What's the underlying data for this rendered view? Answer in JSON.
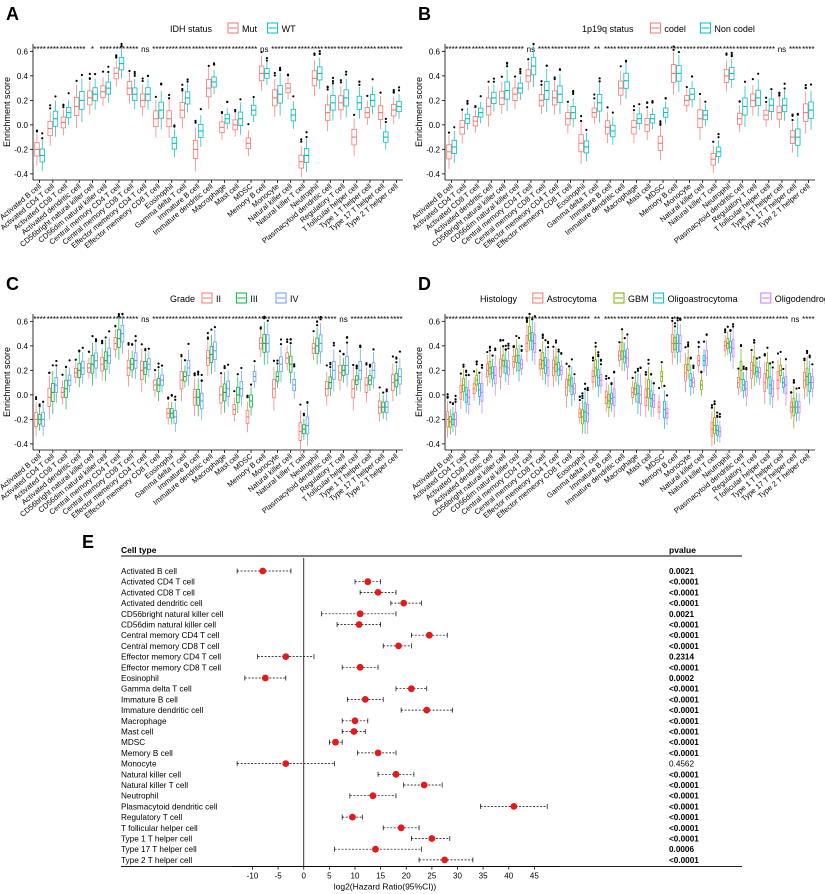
{
  "cell_types": [
    "Activated B cell",
    "Activated CD4 T cell",
    "Activated CD8 T cell",
    "Activated dendritic cell",
    "CD56bright natural killer cell",
    "CD56dim natural killer cell",
    "Central memory CD4 T cell",
    "Central memory CD8 T cell",
    "Effector memeory CD4 T cell",
    "Effector memeory CD8 T cell",
    "Eosinophil",
    "Gamma delta T cell",
    "Immature B cell",
    "Immature dendritic cell",
    "Macrophage",
    "Mast cell",
    "MDSC",
    "Memory B cell",
    "Monocyte",
    "Natural killer cell",
    "Natural killer T cell",
    "Neutrophil",
    "Plasmacytoid dendritic cell",
    "Regulatory T cell",
    "T follicular helper cell",
    "Type 1 T helper cell",
    "Type 17 T helper cell",
    "Type 2 T helper cell"
  ],
  "panels": [
    {
      "letter": "A",
      "legend_title": "IDH status",
      "groups": [
        "Mut",
        "WT"
      ],
      "colors": [
        "#F8766D",
        "#00BFC4"
      ],
      "ylabel": "Enrichment score",
      "yticks": [
        -0.4,
        -0.2,
        0.0,
        0.2,
        0.4,
        0.6
      ],
      "ylim": [
        -0.45,
        0.66
      ],
      "significance": [
        "****",
        "****",
        "****",
        "****",
        "*",
        "****",
        "****",
        "****",
        "ns",
        "****",
        "****",
        "****",
        "****",
        "****",
        "****",
        "****",
        "****",
        "ns",
        "****",
        "****",
        "****",
        "****",
        "****",
        "****",
        "****",
        "****",
        "****",
        "****"
      ],
      "medians": [
        [
          -0.2,
          -0.03,
          0.02,
          0.15,
          0.22,
          0.27,
          0.42,
          0.3,
          0.2,
          0.05,
          0.05,
          0.12,
          -0.2,
          0.3,
          -0.02,
          0.0,
          -0.15,
          0.42,
          0.22,
          0.3,
          -0.3,
          0.38,
          0.1,
          0.18,
          -0.1,
          0.1,
          0.1,
          0.12
        ],
        [
          -0.25,
          0.05,
          0.1,
          0.2,
          0.25,
          0.3,
          0.5,
          0.25,
          0.25,
          0.12,
          -0.15,
          0.22,
          -0.05,
          0.35,
          0.05,
          0.05,
          0.12,
          0.42,
          0.25,
          0.08,
          -0.25,
          0.42,
          0.18,
          0.22,
          0.18,
          0.2,
          -0.1,
          0.15
        ]
      ]
    },
    {
      "letter": "B",
      "legend_title": "1p19q status",
      "groups": [
        "codel",
        "Non codel"
      ],
      "colors": [
        "#F8766D",
        "#00BFC4"
      ],
      "ylabel": "Enrichment score",
      "yticks": [
        -0.4,
        -0.2,
        0.0,
        0.2,
        0.4,
        0.6
      ],
      "ylim": [
        -0.45,
        0.66
      ],
      "significance": [
        "****",
        "****",
        "****",
        "****",
        "****",
        "****",
        "ns",
        "****",
        "****",
        "****",
        "****",
        "**",
        "****",
        "****",
        "****",
        "****",
        "****",
        "****",
        "****",
        "****",
        "****",
        "****",
        "****",
        "****",
        "****",
        "ns",
        "****",
        "****"
      ],
      "medians": [
        [
          -0.22,
          -0.02,
          0.03,
          0.15,
          0.22,
          0.25,
          0.4,
          0.2,
          0.22,
          0.05,
          -0.15,
          0.1,
          -0.02,
          0.3,
          -0.02,
          0.0,
          -0.15,
          0.42,
          0.2,
          0.05,
          -0.28,
          0.4,
          0.05,
          0.2,
          0.08,
          0.1,
          -0.1,
          0.1
        ],
        [
          -0.18,
          0.05,
          0.1,
          0.22,
          0.28,
          0.3,
          0.48,
          0.28,
          0.25,
          0.1,
          -0.18,
          0.18,
          -0.05,
          0.36,
          0.05,
          0.05,
          0.1,
          0.42,
          0.25,
          0.08,
          -0.22,
          0.42,
          0.15,
          0.22,
          0.16,
          0.16,
          -0.1,
          0.12
        ]
      ]
    },
    {
      "letter": "C",
      "legend_title": "Grade",
      "groups": [
        "II",
        "III",
        "IV"
      ],
      "colors": [
        "#F8766D",
        "#00BA38",
        "#619CFF"
      ],
      "ylabel": "Enrichment score",
      "yticks": [
        -0.4,
        -0.2,
        0.0,
        0.2,
        0.4,
        0.6
      ],
      "ylim": [
        -0.45,
        0.66
      ],
      "significance": [
        "****",
        "****",
        "****",
        "****",
        "****",
        "****",
        "****",
        "****",
        "ns",
        "****",
        "****",
        "****",
        "****",
        "****",
        "****",
        "****",
        "****",
        "****",
        "****",
        "****",
        "****",
        "****",
        "****",
        "ns",
        "****",
        "****",
        "****",
        "****"
      ],
      "medians": [
        [
          -0.2,
          -0.02,
          0.02,
          0.18,
          0.22,
          0.25,
          0.42,
          0.22,
          0.2,
          0.08,
          -0.15,
          0.12,
          -0.02,
          0.3,
          0.0,
          -0.12,
          -0.18,
          0.42,
          0.05,
          0.3,
          -0.3,
          0.38,
          0.05,
          0.18,
          0.05,
          0.08,
          -0.1,
          0.1
        ],
        [
          -0.2,
          0.02,
          0.05,
          0.2,
          0.25,
          0.28,
          0.46,
          0.25,
          0.22,
          0.08,
          -0.15,
          0.15,
          -0.02,
          0.33,
          0.02,
          0.0,
          -0.05,
          0.42,
          0.15,
          0.25,
          -0.28,
          0.4,
          0.1,
          0.2,
          0.12,
          0.12,
          -0.1,
          0.12
        ],
        [
          -0.2,
          0.08,
          0.12,
          0.22,
          0.28,
          0.32,
          0.5,
          0.28,
          0.25,
          0.12,
          -0.18,
          0.22,
          -0.05,
          0.36,
          0.05,
          0.05,
          0.15,
          0.42,
          0.25,
          0.08,
          -0.25,
          0.42,
          0.2,
          0.24,
          0.2,
          0.2,
          -0.1,
          0.15
        ]
      ]
    },
    {
      "letter": "D",
      "legend_title": "Histology",
      "groups": [
        "Astrocytoma",
        "GBM",
        "Oligoastrocytoma",
        "Oligodendroglioma"
      ],
      "colors": [
        "#F8766D",
        "#7CAE00",
        "#00BFC4",
        "#C77CFF"
      ],
      "ylabel": "Enrichment score",
      "yticks": [
        -0.4,
        -0.2,
        0.0,
        0.2,
        0.4,
        0.6
      ],
      "ylim": [
        -0.45,
        0.66
      ],
      "significance": [
        "****",
        "****",
        "****",
        "****",
        "****",
        "****",
        "****",
        "****",
        "****",
        "****",
        "****",
        "**",
        "****",
        "****",
        "****",
        "****",
        "****",
        "**",
        "****",
        "****",
        "****",
        "****",
        "****",
        "****",
        "****",
        "****",
        "ns",
        "****"
      ],
      "medians": [
        [
          -0.2,
          0.02,
          0.05,
          0.2,
          0.22,
          0.27,
          0.42,
          0.25,
          0.22,
          0.06,
          -0.15,
          0.15,
          -0.02,
          0.32,
          0.02,
          -0.02,
          -0.1,
          0.42,
          0.18,
          0.28,
          -0.28,
          0.4,
          0.1,
          0.2,
          0.1,
          0.12,
          -0.1,
          0.12
        ],
        [
          -0.22,
          0.08,
          0.12,
          0.22,
          0.28,
          0.32,
          0.5,
          0.28,
          0.25,
          0.12,
          -0.18,
          0.22,
          -0.05,
          0.36,
          0.05,
          0.05,
          0.15,
          0.42,
          0.25,
          0.08,
          -0.25,
          0.42,
          0.2,
          0.24,
          0.2,
          0.2,
          -0.1,
          0.15
        ],
        [
          -0.2,
          0.0,
          0.04,
          0.18,
          0.23,
          0.26,
          0.44,
          0.24,
          0.21,
          0.07,
          -0.14,
          0.14,
          -0.03,
          0.31,
          0.01,
          -0.03,
          -0.12,
          0.42,
          0.12,
          0.28,
          -0.29,
          0.39,
          0.08,
          0.19,
          0.08,
          0.1,
          -0.1,
          0.1
        ],
        [
          -0.2,
          -0.02,
          0.02,
          0.16,
          0.22,
          0.25,
          0.42,
          0.22,
          0.2,
          0.05,
          -0.15,
          0.12,
          -0.02,
          0.3,
          0.0,
          -0.05,
          -0.15,
          0.42,
          0.1,
          0.3,
          -0.3,
          0.38,
          0.05,
          0.18,
          0.05,
          0.08,
          -0.1,
          0.1
        ]
      ]
    }
  ],
  "chart_data": [
    {
      "type": "forest",
      "panel": "E",
      "header_label": "Cell type",
      "pvalue_header": "pvalue",
      "xlabel": "log2(Hazard Ratio(95%CI))",
      "xlim": [
        -14,
        50
      ],
      "xticks": [
        -10,
        -5,
        0,
        5,
        10,
        15,
        20,
        25,
        30,
        35,
        40,
        45
      ],
      "categories": [
        "Activated B cell",
        "Activated CD4 T cell",
        "Activated CD8 T cell",
        "Activated dendritic cell",
        "CD56bright natural killer cell",
        "CD56dim natural killer cell",
        "Central memory CD4 T cell",
        "Central memory CD8 T cell",
        "Effector memory CD4 T cell",
        "Effector memory CD8 T cell",
        "Eosinophil",
        "Gamma delta T cell",
        "Immature B cell",
        "Immature dendritic cell",
        "Macrophage",
        "Mast cell",
        "MDSC",
        "Memory B cell",
        "Monocyte",
        "Natural killer cell",
        "Natural killer T cell",
        "Neutrophil",
        "Plasmacytoid dendritic cell",
        "Regulatory T cell",
        "T follicular helper cell",
        "Type 1 T helper cell",
        "Type 17 T helper cell",
        "Type 2 T helper cell"
      ],
      "estimate": [
        -8,
        12.5,
        14.5,
        19.5,
        11,
        10.8,
        24.5,
        18.5,
        -3.5,
        11,
        -7.5,
        21,
        12,
        24,
        10,
        9.8,
        6.2,
        14.5,
        -3.5,
        18,
        23.5,
        13.5,
        41,
        9.5,
        19,
        25,
        14,
        27.5
      ],
      "ci_lower": [
        -13,
        10,
        11,
        17,
        3.5,
        6.5,
        21,
        15.5,
        -9,
        7.5,
        -11.5,
        18,
        8.5,
        19,
        7.5,
        7.5,
        5,
        10.5,
        -13,
        14.5,
        19.5,
        9,
        34.5,
        7.5,
        15.5,
        21,
        6,
        22.5
      ],
      "ci_upper": [
        -2.5,
        15,
        18,
        23,
        18,
        15,
        28,
        21,
        2,
        14.5,
        -3.5,
        24,
        15.5,
        29,
        12.5,
        12,
        7.5,
        18,
        6,
        21.5,
        27,
        18,
        47.5,
        11.5,
        22.5,
        28.5,
        23,
        33
      ],
      "pvalues": [
        "0.0021",
        "<0.0001",
        "<0.0001",
        "<0.0001",
        "0.0021",
        "<0.0001",
        "<0.0001",
        "<0.0001",
        "0.2314",
        "<0.0001",
        "0.0002",
        "<0.0001",
        "<0.0001",
        "<0.0001",
        "<0.0001",
        "<0.0001",
        "<0.0001",
        "<0.0001",
        "0.4562",
        "<0.0001",
        "<0.0001",
        "<0.0001",
        "<0.0001",
        "<0.0001",
        "<0.0001",
        "<0.0001",
        "0.0006",
        "<0.0001"
      ],
      "pvalue_bold": [
        true,
        true,
        true,
        true,
        true,
        true,
        true,
        true,
        true,
        true,
        true,
        true,
        true,
        true,
        true,
        true,
        true,
        true,
        false,
        true,
        true,
        true,
        true,
        true,
        true,
        true,
        true,
        true
      ],
      "point_color": "#E31A1C"
    }
  ],
  "forest_letter": "E"
}
